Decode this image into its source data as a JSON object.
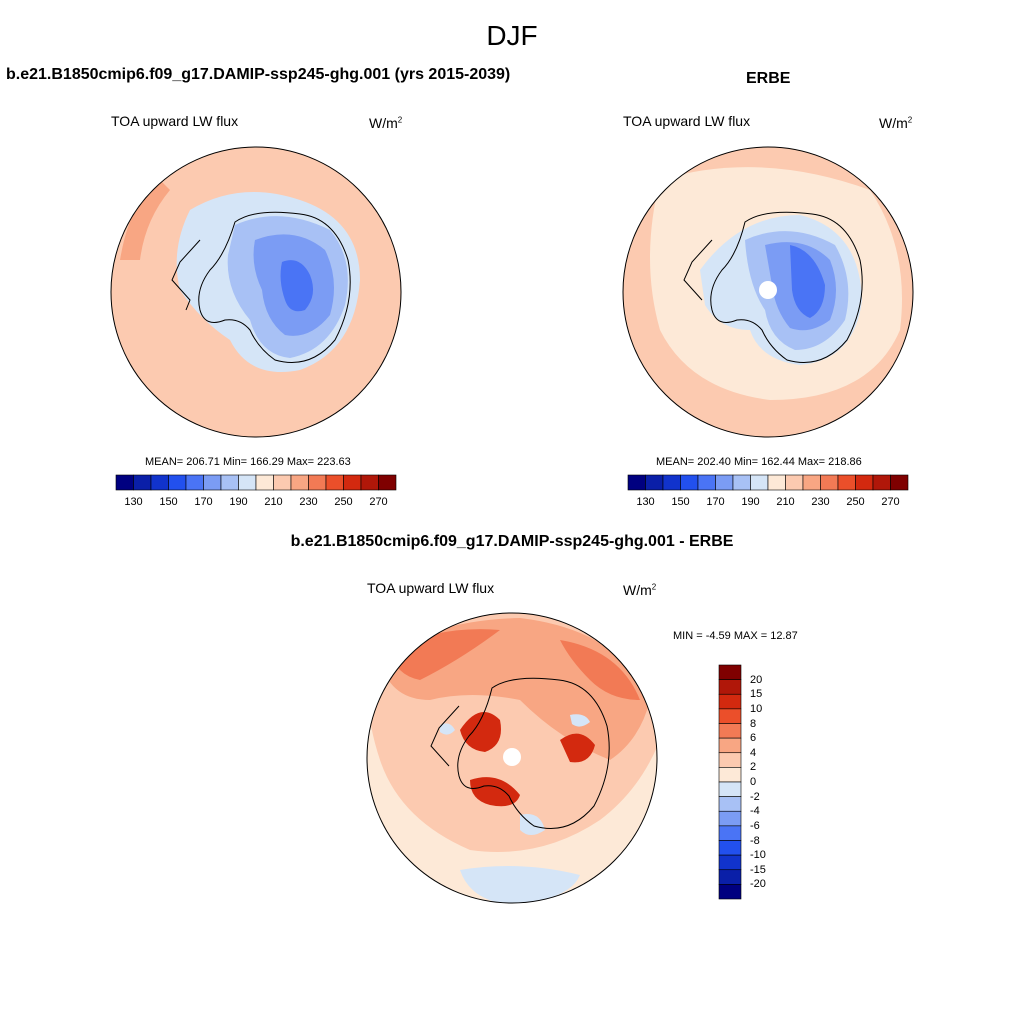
{
  "figure": {
    "season": "DJF",
    "variable": "TOA upward LW flux",
    "units_base": "W/m",
    "units_exp": "2"
  },
  "panels": {
    "model": {
      "title": "b.e21.B1850cmip6.f09_g17.DAMIP-ssp245-ghg.001 (yrs 2015-2039)",
      "stats": "MEAN= 206.71  Min= 166.29  Max= 223.63"
    },
    "obs": {
      "title": "ERBE",
      "stats": "MEAN= 202.40  Min= 162.44  Max= 218.86"
    },
    "diff": {
      "title": "b.e21.B1850cmip6.f09_g17.DAMIP-ssp245-ghg.001 - ERBE",
      "stats": "MIN =  -4.59 MAX =  12.87"
    }
  },
  "abs_colorbar": {
    "colors": [
      "#000080",
      "#0a1fa8",
      "#1133cc",
      "#2250ee",
      "#4a74f5",
      "#7b9cf4",
      "#a8c1f5",
      "#d5e5f7",
      "#fde9d7",
      "#fccab0",
      "#f8a683",
      "#f27a55",
      "#eb4f2a",
      "#d3290f",
      "#b01709",
      "#7f0000"
    ],
    "tick_labels": [
      "130",
      "150",
      "170",
      "190",
      "210",
      "230",
      "250",
      "270"
    ]
  },
  "diff_colorbar": {
    "colors": [
      "#000080",
      "#0a1fa8",
      "#1133cc",
      "#2250ee",
      "#4a74f5",
      "#7b9cf4",
      "#a8c1f5",
      "#d5e5f7",
      "#fde9d7",
      "#fccab0",
      "#f8a683",
      "#f27a55",
      "#eb4f2a",
      "#d3290f",
      "#b01709",
      "#7f0000"
    ],
    "tick_labels": [
      "20",
      "15",
      "10",
      "8",
      "6",
      "4",
      "2",
      "0",
      "-2",
      "-4",
      "-6",
      "-8",
      "-10",
      "-15",
      "-20"
    ]
  },
  "map_colors": {
    "ocean_model": "#fccab0",
    "ocean_obs_outer": "#fccab0",
    "ocean_obs_inner": "#fde9d7",
    "ice_light": "#d5e5f7",
    "ice_mid1": "#a8c1f5",
    "ice_mid2": "#7b9cf4",
    "ice_core": "#4a74f5",
    "diff_bg": "#fde9d7",
    "diff_warm": "#fccab0",
    "diff_warmer": "#f8a683",
    "diff_hot": "#f27a55",
    "diff_hotter": "#eb4f2a",
    "diff_max": "#d3290f",
    "diff_cool": "#d5e5f7",
    "diff_cooler": "#a8c1f5"
  }
}
